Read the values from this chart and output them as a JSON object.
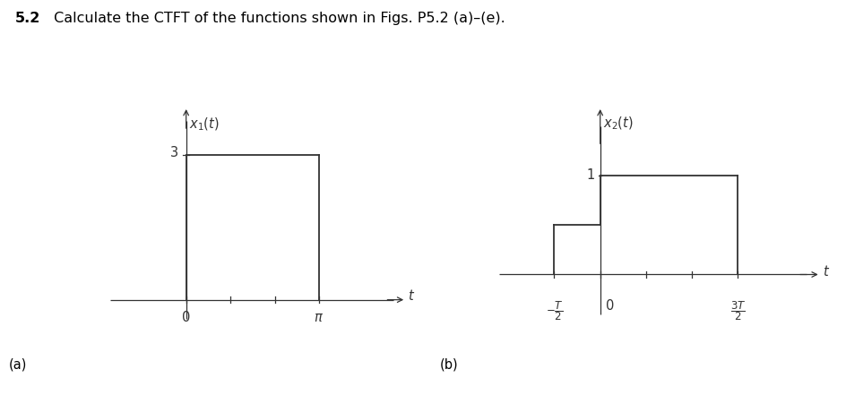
{
  "title_bold": "5.2",
  "title_normal": " Calculate the CTFT of the functions shown in Figs. P5.2 (a)–(e).",
  "plot_a": {
    "pulse_start": 0,
    "pulse_end": 3.14159,
    "pulse_height": 3,
    "x_min": -1.8,
    "x_max": 5.2,
    "y_min": -0.5,
    "y_max": 4.0,
    "fig_label": "(a)"
  },
  "plot_b": {
    "level1_start": -1.0,
    "level1_end": 0.0,
    "level1_height": 0.5,
    "level2_start": 0.0,
    "level2_end": 3.0,
    "level2_height": 1.0,
    "x_min": -2.2,
    "x_max": 4.8,
    "y_min": -0.5,
    "y_max": 1.7,
    "fig_label": "(b)"
  },
  "line_color": "#333333",
  "bg_color": "#ffffff",
  "font_size_label": 10.5,
  "font_size_tick": 10.5,
  "font_size_title": 11.5
}
